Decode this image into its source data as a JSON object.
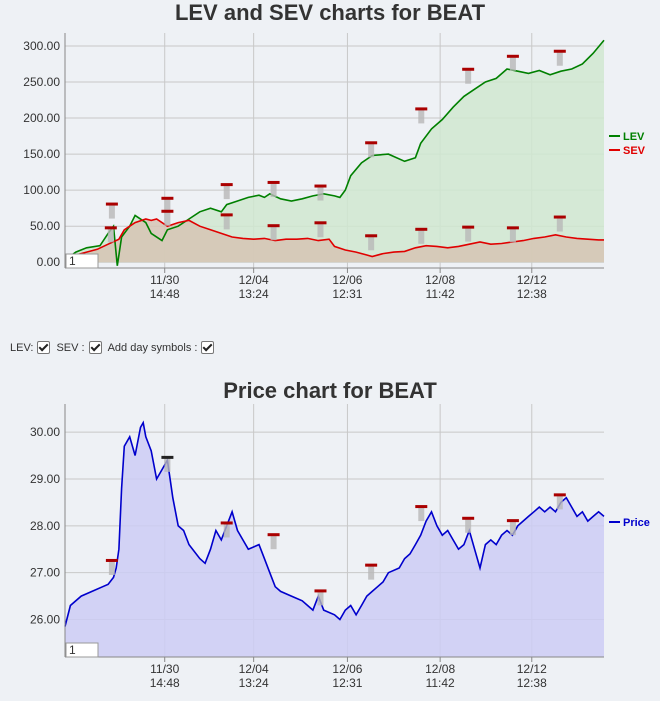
{
  "charts": {
    "lev_sev": {
      "title": "LEV and SEV charts for BEAT",
      "zoom_value": "1"
    },
    "price": {
      "title": "Price chart for BEAT",
      "zoom_value": "1"
    }
  },
  "controls": {
    "lev_label": "LEV:",
    "sev_label": "SEV :",
    "day_symbols_label": "Add day symbols :"
  },
  "chart_data": [
    {
      "type": "line",
      "title": "LEV and SEV charts for BEAT",
      "x_ticks": [
        {
          "date": "11/30",
          "time": "14:48",
          "t": 0.185
        },
        {
          "date": "12/04",
          "time": "13:24",
          "t": 0.35
        },
        {
          "date": "12/06",
          "time": "12:31",
          "t": 0.524
        },
        {
          "date": "12/08",
          "time": "11:42",
          "t": 0.696
        },
        {
          "date": "12/12",
          "time": "12:38",
          "t": 0.866
        }
      ],
      "y_ticks": [
        "0.00",
        "50.00",
        "100.00",
        "150.00",
        "200.00",
        "250.00",
        "300.00"
      ],
      "ylim": [
        -8,
        318
      ],
      "grid": true,
      "legend_position": "right",
      "series": [
        {
          "name": "LEV",
          "color": "#008000",
          "fill": "#d0e8d0",
          "points": [
            [
              0,
              3
            ],
            [
              0.02,
              14
            ],
            [
              0.04,
              20
            ],
            [
              0.065,
              23
            ],
            [
              0.08,
              40
            ],
            [
              0.09,
              50
            ],
            [
              0.097,
              -5
            ],
            [
              0.105,
              35
            ],
            [
              0.12,
              50
            ],
            [
              0.13,
              65
            ],
            [
              0.15,
              55
            ],
            [
              0.16,
              40
            ],
            [
              0.18,
              30
            ],
            [
              0.19,
              45
            ],
            [
              0.21,
              50
            ],
            [
              0.23,
              60
            ],
            [
              0.25,
              70
            ],
            [
              0.27,
              75
            ],
            [
              0.29,
              70
            ],
            [
              0.3,
              80
            ],
            [
              0.32,
              85
            ],
            [
              0.34,
              90
            ],
            [
              0.36,
              93
            ],
            [
              0.37,
              90
            ],
            [
              0.38,
              95
            ],
            [
              0.4,
              88
            ],
            [
              0.42,
              85
            ],
            [
              0.44,
              88
            ],
            [
              0.46,
              92
            ],
            [
              0.48,
              95
            ],
            [
              0.5,
              92
            ],
            [
              0.51,
              90
            ],
            [
              0.52,
              100
            ],
            [
              0.53,
              120
            ],
            [
              0.55,
              138
            ],
            [
              0.57,
              148
            ],
            [
              0.6,
              150
            ],
            [
              0.63,
              140
            ],
            [
              0.65,
              145
            ],
            [
              0.66,
              165
            ],
            [
              0.68,
              185
            ],
            [
              0.7,
              198
            ],
            [
              0.72,
              215
            ],
            [
              0.74,
              230
            ],
            [
              0.76,
              240
            ],
            [
              0.78,
              250
            ],
            [
              0.8,
              255
            ],
            [
              0.82,
              268
            ],
            [
              0.84,
              265
            ],
            [
              0.86,
              262
            ],
            [
              0.88,
              266
            ],
            [
              0.9,
              260
            ],
            [
              0.92,
              265
            ],
            [
              0.94,
              268
            ],
            [
              0.96,
              275
            ],
            [
              0.98,
              290
            ],
            [
              1,
              308
            ]
          ]
        },
        {
          "name": "SEV",
          "color": "#e00000",
          "fill": "#d6c4b4",
          "points": [
            [
              0,
              2
            ],
            [
              0.02,
              10
            ],
            [
              0.04,
              14
            ],
            [
              0.06,
              18
            ],
            [
              0.08,
              25
            ],
            [
              0.1,
              32
            ],
            [
              0.11,
              45
            ],
            [
              0.13,
              55
            ],
            [
              0.15,
              60
            ],
            [
              0.16,
              58
            ],
            [
              0.17,
              60
            ],
            [
              0.19,
              50
            ],
            [
              0.21,
              55
            ],
            [
              0.23,
              58
            ],
            [
              0.25,
              50
            ],
            [
              0.27,
              45
            ],
            [
              0.29,
              40
            ],
            [
              0.31,
              35
            ],
            [
              0.33,
              33
            ],
            [
              0.35,
              32
            ],
            [
              0.37,
              33
            ],
            [
              0.39,
              30
            ],
            [
              0.41,
              32
            ],
            [
              0.43,
              32
            ],
            [
              0.45,
              33
            ],
            [
              0.47,
              30
            ],
            [
              0.49,
              32
            ],
            [
              0.5,
              22
            ],
            [
              0.52,
              17
            ],
            [
              0.54,
              14
            ],
            [
              0.56,
              10
            ],
            [
              0.57,
              8
            ],
            [
              0.59,
              12
            ],
            [
              0.61,
              14
            ],
            [
              0.63,
              15
            ],
            [
              0.65,
              20
            ],
            [
              0.67,
              23
            ],
            [
              0.69,
              22
            ],
            [
              0.71,
              20
            ],
            [
              0.73,
              22
            ],
            [
              0.75,
              25
            ],
            [
              0.77,
              28
            ],
            [
              0.79,
              25
            ],
            [
              0.81,
              26
            ],
            [
              0.83,
              28
            ],
            [
              0.85,
              30
            ],
            [
              0.87,
              33
            ],
            [
              0.89,
              35
            ],
            [
              0.91,
              38
            ],
            [
              0.93,
              35
            ],
            [
              0.95,
              33
            ],
            [
              0.97,
              32
            ],
            [
              0.99,
              31
            ],
            [
              1,
              31
            ]
          ]
        }
      ],
      "day_markers": [
        {
          "t": 0.087,
          "v": 80,
          "color": "#aa0000"
        },
        {
          "t": 0.085,
          "v": 47,
          "color": "#aa0000"
        },
        {
          "t": 0.19,
          "v": 88,
          "color": "#aa0000"
        },
        {
          "t": 0.19,
          "v": 70,
          "color": "#aa0000"
        },
        {
          "t": 0.3,
          "v": 107,
          "color": "#aa0000"
        },
        {
          "t": 0.3,
          "v": 65,
          "color": "#aa0000"
        },
        {
          "t": 0.387,
          "v": 110,
          "color": "#aa0000"
        },
        {
          "t": 0.387,
          "v": 50,
          "color": "#aa0000"
        },
        {
          "t": 0.474,
          "v": 105,
          "color": "#aa0000"
        },
        {
          "t": 0.474,
          "v": 54,
          "color": "#aa0000"
        },
        {
          "t": 0.568,
          "v": 165,
          "color": "#aa0000"
        },
        {
          "t": 0.568,
          "v": 36,
          "color": "#aa0000"
        },
        {
          "t": 0.661,
          "v": 212,
          "color": "#aa0000"
        },
        {
          "t": 0.661,
          "v": 45,
          "color": "#aa0000"
        },
        {
          "t": 0.748,
          "v": 267,
          "color": "#aa0000"
        },
        {
          "t": 0.748,
          "v": 48,
          "color": "#aa0000"
        },
        {
          "t": 0.831,
          "v": 285,
          "color": "#aa0000"
        },
        {
          "t": 0.831,
          "v": 47,
          "color": "#aa0000"
        },
        {
          "t": 0.918,
          "v": 292,
          "color": "#aa0000"
        },
        {
          "t": 0.918,
          "v": 62,
          "color": "#aa0000"
        }
      ]
    },
    {
      "type": "area",
      "title": "Price chart for BEAT",
      "x_ticks": [
        {
          "date": "11/30",
          "time": "14:48",
          "t": 0.185
        },
        {
          "date": "12/04",
          "time": "13:24",
          "t": 0.35
        },
        {
          "date": "12/06",
          "time": "12:31",
          "t": 0.524
        },
        {
          "date": "12/08",
          "time": "11:42",
          "t": 0.696
        },
        {
          "date": "12/12",
          "time": "12:38",
          "t": 0.866
        }
      ],
      "y_ticks": [
        "26.00",
        "27.00",
        "28.00",
        "29.00",
        "30.00"
      ],
      "ylim": [
        25.2,
        30.6
      ],
      "grid": true,
      "legend_position": "right",
      "series": [
        {
          "name": "Price",
          "color": "#0000cc",
          "fill": "#ccccf5",
          "points": [
            [
              0,
              25.85
            ],
            [
              0.01,
              26.3
            ],
            [
              0.03,
              26.5
            ],
            [
              0.05,
              26.6
            ],
            [
              0.07,
              26.7
            ],
            [
              0.08,
              26.75
            ],
            [
              0.09,
              26.9
            ],
            [
              0.095,
              27.1
            ],
            [
              0.1,
              27.5
            ],
            [
              0.105,
              28.8
            ],
            [
              0.11,
              29.7
            ],
            [
              0.12,
              29.9
            ],
            [
              0.13,
              29.5
            ],
            [
              0.14,
              30.1
            ],
            [
              0.145,
              30.2
            ],
            [
              0.15,
              29.9
            ],
            [
              0.16,
              29.6
            ],
            [
              0.17,
              29.0
            ],
            [
              0.18,
              29.2
            ],
            [
              0.19,
              29.4
            ],
            [
              0.2,
              28.6
            ],
            [
              0.21,
              28.0
            ],
            [
              0.22,
              27.9
            ],
            [
              0.23,
              27.6
            ],
            [
              0.25,
              27.3
            ],
            [
              0.26,
              27.2
            ],
            [
              0.27,
              27.5
            ],
            [
              0.28,
              27.9
            ],
            [
              0.29,
              27.7
            ],
            [
              0.3,
              28.0
            ],
            [
              0.31,
              28.3
            ],
            [
              0.32,
              27.9
            ],
            [
              0.33,
              27.7
            ],
            [
              0.34,
              27.5
            ],
            [
              0.36,
              27.6
            ],
            [
              0.37,
              27.3
            ],
            [
              0.38,
              27.0
            ],
            [
              0.39,
              26.7
            ],
            [
              0.4,
              26.6
            ],
            [
              0.42,
              26.5
            ],
            [
              0.44,
              26.4
            ],
            [
              0.45,
              26.3
            ],
            [
              0.46,
              26.2
            ],
            [
              0.47,
              26.5
            ],
            [
              0.48,
              26.2
            ],
            [
              0.5,
              26.1
            ],
            [
              0.51,
              26.0
            ],
            [
              0.52,
              26.2
            ],
            [
              0.53,
              26.3
            ],
            [
              0.54,
              26.1
            ],
            [
              0.55,
              26.3
            ],
            [
              0.56,
              26.5
            ],
            [
              0.57,
              26.6
            ],
            [
              0.58,
              26.7
            ],
            [
              0.59,
              26.8
            ],
            [
              0.6,
              27.0
            ],
            [
              0.62,
              27.1
            ],
            [
              0.63,
              27.3
            ],
            [
              0.64,
              27.4
            ],
            [
              0.65,
              27.6
            ],
            [
              0.66,
              27.8
            ],
            [
              0.67,
              28.1
            ],
            [
              0.68,
              28.3
            ],
            [
              0.69,
              28.0
            ],
            [
              0.7,
              27.8
            ],
            [
              0.71,
              27.9
            ],
            [
              0.72,
              27.7
            ],
            [
              0.73,
              27.5
            ],
            [
              0.74,
              27.6
            ],
            [
              0.75,
              27.9
            ],
            [
              0.76,
              27.5
            ],
            [
              0.77,
              27.1
            ],
            [
              0.78,
              27.6
            ],
            [
              0.79,
              27.7
            ],
            [
              0.8,
              27.6
            ],
            [
              0.81,
              27.8
            ],
            [
              0.82,
              27.9
            ],
            [
              0.83,
              27.8
            ],
            [
              0.84,
              28.0
            ],
            [
              0.85,
              28.1
            ],
            [
              0.86,
              28.2
            ],
            [
              0.87,
              28.3
            ],
            [
              0.88,
              28.4
            ],
            [
              0.89,
              28.3
            ],
            [
              0.9,
              28.4
            ],
            [
              0.91,
              28.3
            ],
            [
              0.92,
              28.5
            ],
            [
              0.93,
              28.6
            ],
            [
              0.94,
              28.4
            ],
            [
              0.95,
              28.2
            ],
            [
              0.96,
              28.3
            ],
            [
              0.97,
              28.1
            ],
            [
              0.98,
              28.2
            ],
            [
              0.99,
              28.3
            ],
            [
              1,
              28.2
            ]
          ]
        }
      ],
      "day_markers": [
        {
          "t": 0.087,
          "v": 27.25,
          "color": "#aa0000"
        },
        {
          "t": 0.19,
          "v": 29.45,
          "color": "#222222"
        },
        {
          "t": 0.3,
          "v": 28.05,
          "color": "#aa0000"
        },
        {
          "t": 0.387,
          "v": 27.8,
          "color": "#aa0000"
        },
        {
          "t": 0.474,
          "v": 26.6,
          "color": "#aa0000"
        },
        {
          "t": 0.568,
          "v": 27.15,
          "color": "#aa0000"
        },
        {
          "t": 0.661,
          "v": 28.4,
          "color": "#aa0000"
        },
        {
          "t": 0.748,
          "v": 28.15,
          "color": "#aa0000"
        },
        {
          "t": 0.831,
          "v": 28.1,
          "color": "#aa0000"
        },
        {
          "t": 0.918,
          "v": 28.65,
          "color": "#aa0000"
        }
      ]
    }
  ]
}
